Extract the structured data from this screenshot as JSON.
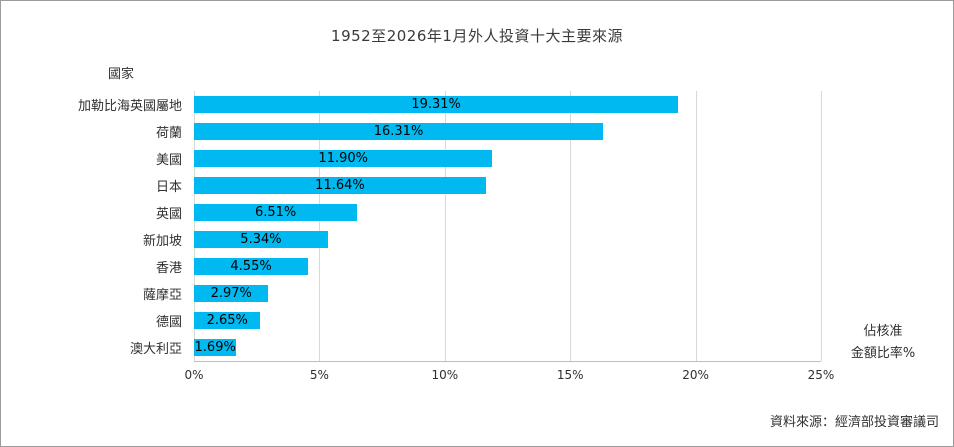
{
  "chart_data": {
    "type": "bar",
    "orientation": "horizontal",
    "title": "1952至2026年1月外人投資十大主要來源",
    "ylabel": "國家",
    "categories": [
      "加勒比海英國屬地",
      "荷蘭",
      "美國",
      "日本",
      "英國",
      "新加坡",
      "香港",
      "薩摩亞",
      "德國",
      "澳大利亞"
    ],
    "values": [
      19.31,
      16.31,
      11.9,
      11.64,
      6.51,
      5.34,
      4.55,
      2.97,
      2.65,
      1.69
    ],
    "value_labels": [
      "19.31%",
      "16.31%",
      "11.90%",
      "11.64%",
      "6.51%",
      "5.34%",
      "4.55%",
      "2.97%",
      "2.65%",
      "1.69%"
    ],
    "xlim": [
      0,
      25
    ],
    "x_ticks": [
      "0%",
      "5%",
      "10%",
      "15%",
      "20%",
      "25%"
    ],
    "grid": "vertical",
    "legend": "none",
    "bar_color": "#00b9f0",
    "gridline_color": "#d9d9d9"
  },
  "right_axis_note": {
    "line1": "佔核准",
    "line2": "金額比率%"
  },
  "source": "資料來源：經濟部投資審議司"
}
